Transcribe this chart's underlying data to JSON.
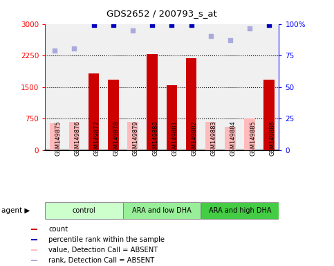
{
  "title": "GDS2652 / 200793_s_at",
  "samples": [
    "GSM149875",
    "GSM149876",
    "GSM149877",
    "GSM149878",
    "GSM149879",
    "GSM149880",
    "GSM149881",
    "GSM149882",
    "GSM149883",
    "GSM149884",
    "GSM149885",
    "GSM149886"
  ],
  "groups": [
    {
      "label": "control",
      "color": "#ccffcc",
      "start": 0,
      "end": 4
    },
    {
      "label": "ARA and low DHA",
      "color": "#99ee99",
      "start": 4,
      "end": 8
    },
    {
      "label": "ARA and high DHA",
      "color": "#44cc44",
      "start": 8,
      "end": 12
    }
  ],
  "red_bars": [
    null,
    null,
    1820,
    1680,
    null,
    2280,
    1540,
    2190,
    null,
    null,
    null,
    1670
  ],
  "pink_bars": [
    640,
    670,
    null,
    null,
    680,
    null,
    null,
    null,
    670,
    560,
    760,
    null
  ],
  "blue_squares": [
    null,
    null,
    2970,
    2970,
    null,
    2970,
    2970,
    2970,
    null,
    null,
    null,
    2970
  ],
  "lavender_squares": [
    2370,
    2410,
    null,
    null,
    2840,
    null,
    null,
    null,
    2720,
    2620,
    2890,
    null
  ],
  "ylim_left": [
    0,
    3000
  ],
  "ylim_right": [
    0,
    100
  ],
  "yticks_left": [
    0,
    750,
    1500,
    2250,
    3000
  ],
  "yticks_right": [
    0,
    25,
    50,
    75,
    100
  ],
  "background_color": "#ffffff",
  "plot_bg_color": "#f0f0f0",
  "red_bar_color": "#cc0000",
  "pink_bar_color": "#ffbbbb",
  "blue_sq_color": "#0000bb",
  "lavender_sq_color": "#aaaadd",
  "label_bg_color": "#cccccc",
  "legend_items": [
    {
      "color": "#cc0000",
      "label": "count"
    },
    {
      "color": "#0000bb",
      "label": "percentile rank within the sample"
    },
    {
      "color": "#ffbbbb",
      "label": "value, Detection Call = ABSENT"
    },
    {
      "color": "#aaaadd",
      "label": "rank, Detection Call = ABSENT"
    }
  ]
}
